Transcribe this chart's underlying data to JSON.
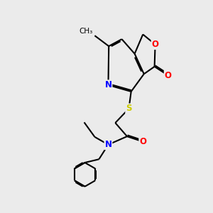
{
  "bg_color": "#ebebeb",
  "bond_color": "#000000",
  "bond_width": 1.5,
  "atom_colors": {
    "N": "#0000ff",
    "O": "#ff0000",
    "S": "#cccc00",
    "C": "#000000"
  },
  "font_size": 8.5,
  "figsize": [
    3.0,
    3.0
  ],
  "dpi": 100
}
